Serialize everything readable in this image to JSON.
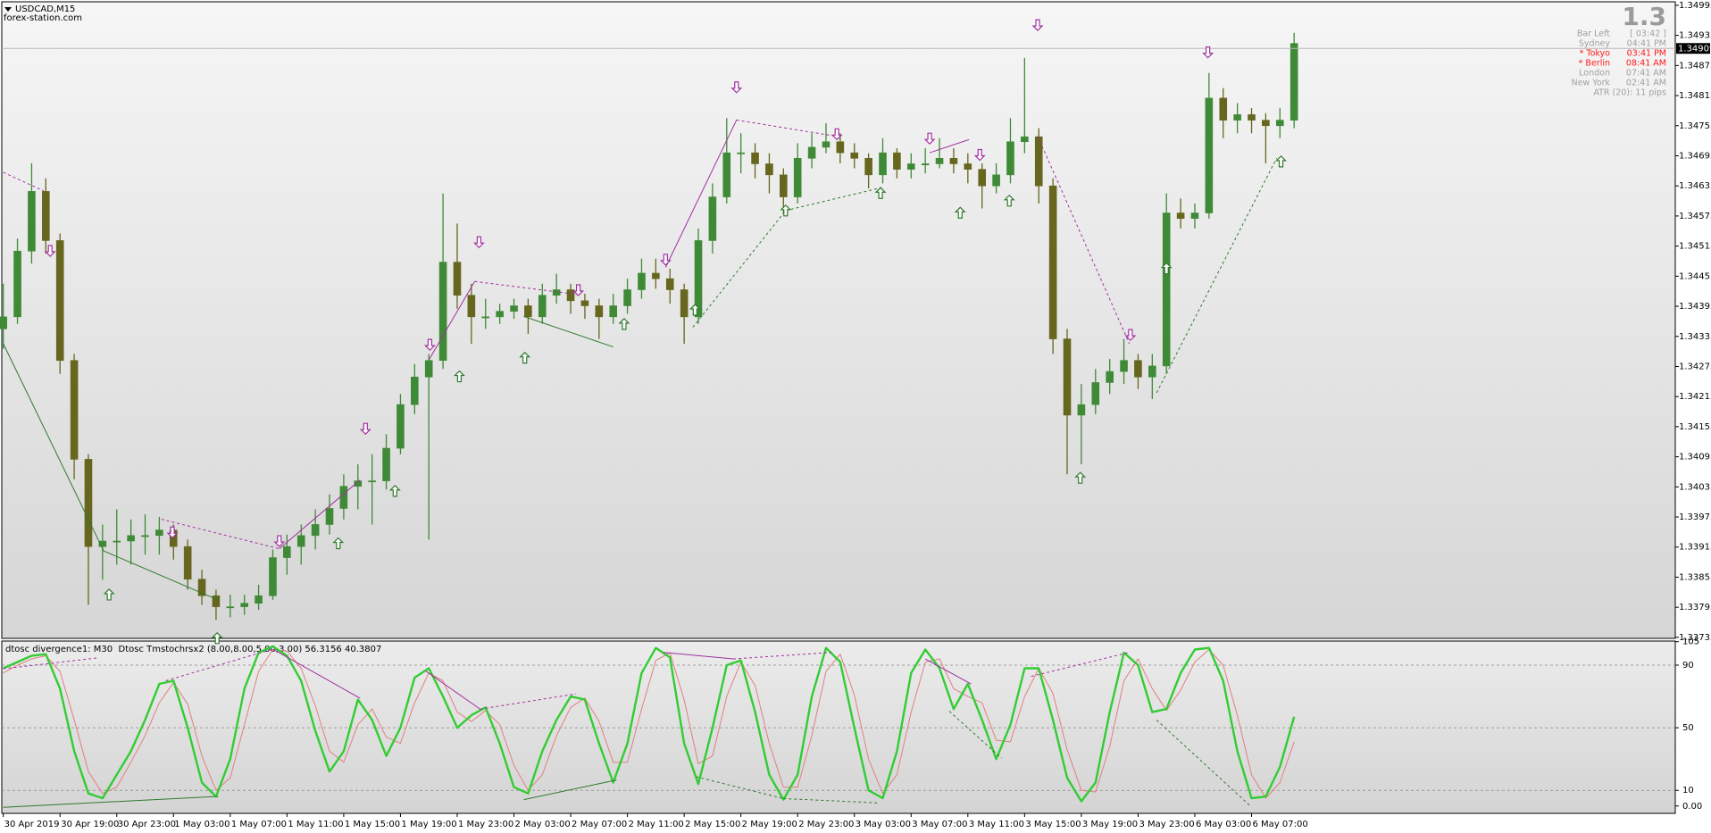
{
  "chart_data": [
    {
      "type": "candlestick",
      "title": "USDCAD,M15",
      "subtitle": "forex-station.com",
      "categories": [
        "30 Apr 2019",
        null,
        null,
        null,
        "30 Apr 19:00",
        null,
        null,
        null,
        "30 Apr 23:00",
        null,
        null,
        null,
        "1 May 03:00",
        null,
        null,
        null,
        "1 May 07:00",
        null,
        null,
        null,
        "1 May 11:00",
        null,
        null,
        null,
        "1 May 15:00",
        null,
        null,
        null,
        "1 May 19:00",
        null,
        null,
        null,
        "1 May 23:00",
        null,
        null,
        null,
        "2 May 03:00",
        null,
        null,
        null,
        "2 May 07:00",
        null,
        null,
        null,
        "2 May 11:00",
        null,
        null,
        null,
        "2 May 15:00",
        null,
        null,
        null,
        "2 May 19:00",
        null,
        null,
        null,
        "2 May 23:00",
        null,
        null,
        null,
        "3 May 03:00",
        null,
        null,
        null,
        "3 May 07:00",
        null,
        null,
        null,
        "3 May 11:00",
        null,
        null,
        null,
        "3 May 15:00",
        null,
        null,
        null,
        "3 May 19:00",
        null,
        null,
        null,
        "3 May 23:00",
        null,
        null,
        null,
        "6 May 03:00",
        null,
        null,
        null,
        "6 May 07:00",
        null,
        null,
        null
      ],
      "candles": [
        [
          1.3435,
          1.3444,
          1.3431,
          1.34374
        ],
        [
          1.34374,
          1.3453,
          1.3436,
          1.34505
        ],
        [
          1.34505,
          1.3468,
          1.3448,
          1.34624
        ],
        [
          1.34624,
          1.3465,
          1.345,
          1.34526
        ],
        [
          1.34526,
          1.3454,
          1.3426,
          1.34287
        ],
        [
          1.34287,
          1.343,
          1.3405,
          1.3409
        ],
        [
          1.3409,
          1.341,
          1.338,
          1.33916
        ],
        [
          1.33916,
          1.3396,
          1.3385,
          1.33927
        ],
        [
          1.33927,
          1.3399,
          1.3388,
          1.33927
        ],
        [
          1.33927,
          1.3397,
          1.3388,
          1.33938
        ],
        [
          1.33938,
          1.3398,
          1.339,
          1.33938
        ],
        [
          1.33938,
          1.33975,
          1.339,
          1.33949
        ],
        [
          1.33949,
          1.3396,
          1.3389,
          1.33916
        ],
        [
          1.33916,
          1.3393,
          1.3383,
          1.33851
        ],
        [
          1.33851,
          1.3387,
          1.338,
          1.33818
        ],
        [
          1.33818,
          1.3383,
          1.3377,
          1.33796
        ],
        [
          1.33796,
          1.3382,
          1.33775,
          1.33796
        ],
        [
          1.33796,
          1.3382,
          1.3378,
          1.33803
        ],
        [
          1.33803,
          1.3384,
          1.3379,
          1.33818
        ],
        [
          1.33818,
          1.3391,
          1.3381,
          1.33894
        ],
        [
          1.33894,
          1.3394,
          1.3386,
          1.33916
        ],
        [
          1.33916,
          1.3396,
          1.3388,
          1.33938
        ],
        [
          1.33938,
          1.3399,
          1.3391,
          1.3396
        ],
        [
          1.3396,
          1.3402,
          1.3394,
          1.33992
        ],
        [
          1.33992,
          1.3406,
          1.3397,
          1.34036
        ],
        [
          1.34036,
          1.3408,
          1.3399,
          1.34047
        ],
        [
          1.34047,
          1.341,
          1.3396,
          1.34047
        ],
        [
          1.34047,
          1.3414,
          1.3403,
          1.34112
        ],
        [
          1.34112,
          1.3422,
          1.341,
          1.34199
        ],
        [
          1.34199,
          1.3428,
          1.3418,
          1.34254
        ],
        [
          1.34254,
          1.343,
          1.3393,
          1.34287
        ],
        [
          1.34287,
          1.3462,
          1.3427,
          1.34483
        ],
        [
          1.34483,
          1.3456,
          1.3439,
          1.34417
        ],
        [
          1.34417,
          1.3444,
          1.3432,
          1.34374
        ],
        [
          1.34374,
          1.3441,
          1.3435,
          1.34374
        ],
        [
          1.34374,
          1.344,
          1.3436,
          1.34385
        ],
        [
          1.34385,
          1.3441,
          1.3437,
          1.34396
        ],
        [
          1.34396,
          1.3441,
          1.3434,
          1.34374
        ],
        [
          1.34374,
          1.3444,
          1.3436,
          1.34417
        ],
        [
          1.34417,
          1.3446,
          1.344,
          1.34428
        ],
        [
          1.34428,
          1.3444,
          1.3438,
          1.34406
        ],
        [
          1.34406,
          1.3442,
          1.3437,
          1.34396
        ],
        [
          1.34396,
          1.3441,
          1.3433,
          1.34374
        ],
        [
          1.34374,
          1.3442,
          1.3436,
          1.34396
        ],
        [
          1.34396,
          1.3445,
          1.3438,
          1.34428
        ],
        [
          1.34428,
          1.3449,
          1.3441,
          1.34461
        ],
        [
          1.34461,
          1.3449,
          1.3443,
          1.3445
        ],
        [
          1.3445,
          1.3447,
          1.344,
          1.34428
        ],
        [
          1.34428,
          1.3444,
          1.3432,
          1.34374
        ],
        [
          1.34374,
          1.3455,
          1.3436,
          1.34526
        ],
        [
          1.34526,
          1.3464,
          1.345,
          1.34613
        ],
        [
          1.34613,
          1.3477,
          1.346,
          1.34701
        ],
        [
          1.34701,
          1.3474,
          1.3466,
          1.34701
        ],
        [
          1.34701,
          1.3472,
          1.3465,
          1.34679
        ],
        [
          1.34679,
          1.347,
          1.3462,
          1.34657
        ],
        [
          1.34657,
          1.3467,
          1.3458,
          1.34613
        ],
        [
          1.34613,
          1.3472,
          1.346,
          1.3469
        ],
        [
          1.3469,
          1.3474,
          1.3467,
          1.34712
        ],
        [
          1.34712,
          1.3476,
          1.347,
          1.34723
        ],
        [
          1.34723,
          1.3474,
          1.3468,
          1.34701
        ],
        [
          1.34701,
          1.3472,
          1.3467,
          1.3469
        ],
        [
          1.3469,
          1.347,
          1.3463,
          1.34657
        ],
        [
          1.34657,
          1.3473,
          1.3464,
          1.34701
        ],
        [
          1.34701,
          1.3471,
          1.3465,
          1.34668
        ],
        [
          1.34668,
          1.347,
          1.3465,
          1.34679
        ],
        [
          1.34679,
          1.3471,
          1.3466,
          1.34679
        ],
        [
          1.34679,
          1.3473,
          1.3467,
          1.3469
        ],
        [
          1.3469,
          1.3471,
          1.3466,
          1.34679
        ],
        [
          1.34679,
          1.347,
          1.3464,
          1.34668
        ],
        [
          1.34668,
          1.3468,
          1.3459,
          1.34635
        ],
        [
          1.34635,
          1.3468,
          1.3462,
          1.34657
        ],
        [
          1.34657,
          1.3477,
          1.3464,
          1.34723
        ],
        [
          1.34723,
          1.3489,
          1.347,
          1.34733
        ],
        [
          1.34733,
          1.3475,
          1.346,
          1.34635
        ],
        [
          1.34635,
          1.3465,
          1.343,
          1.3433
        ],
        [
          1.3433,
          1.3435,
          1.3406,
          1.34178
        ],
        [
          1.34178,
          1.3424,
          1.3408,
          1.34199
        ],
        [
          1.34199,
          1.3427,
          1.3418,
          1.34243
        ],
        [
          1.34243,
          1.3429,
          1.3422,
          1.34265
        ],
        [
          1.34265,
          1.3433,
          1.3424,
          1.34287
        ],
        [
          1.34287,
          1.343,
          1.3423,
          1.34254
        ],
        [
          1.34254,
          1.343,
          1.3421,
          1.34276
        ],
        [
          1.34276,
          1.3462,
          1.3426,
          1.34581
        ],
        [
          1.34581,
          1.3461,
          1.3455,
          1.3457
        ],
        [
          1.3457,
          1.346,
          1.3455,
          1.34581
        ],
        [
          1.34581,
          1.3486,
          1.3457,
          1.3481
        ],
        [
          1.3481,
          1.3483,
          1.3473,
          1.34766
        ],
        [
          1.34766,
          1.348,
          1.3474,
          1.34777
        ],
        [
          1.34777,
          1.3479,
          1.3474,
          1.34766
        ],
        [
          1.34766,
          1.3478,
          1.3468,
          1.34755
        ],
        [
          1.34755,
          1.3479,
          1.3473,
          1.34766
        ],
        [
          1.34766,
          1.3494,
          1.3475,
          1.34919
        ]
      ],
      "up_color": "#3f8a36",
      "down_color": "#66661e",
      "ylim": [
        1.33733,
        1.35002
      ],
      "yticks": [
        1.34995,
        1.34935,
        1.34875,
        1.34815,
        1.34755,
        1.34695,
        1.34635,
        1.34575,
        1.34515,
        1.34455,
        1.34395,
        1.34335,
        1.34275,
        1.34215,
        1.34155,
        1.34095,
        1.34035,
        1.33975,
        1.33915,
        1.33855,
        1.33795,
        1.33735
      ],
      "current_price": 1.34909
    },
    {
      "type": "line",
      "title": "dtosc divergence1: M30  Dtosc Tmstochrsx2 (8.00,8.00,5.00,3.00) 56.3156 40.3807",
      "series": [
        {
          "color": "#33cc33",
          "values": [
            88,
            92,
            96,
            97,
            75,
            35,
            8,
            5,
            20,
            35,
            55,
            78,
            80,
            50,
            15,
            6,
            30,
            75,
            98,
            102,
            96,
            80,
            48,
            22,
            35,
            68,
            55,
            32,
            50,
            82,
            88,
            70,
            50,
            58,
            63,
            40,
            12,
            8,
            35,
            55,
            70,
            68,
            40,
            15,
            40,
            85,
            101,
            95,
            40,
            14,
            50,
            90,
            93,
            60,
            20,
            4,
            20,
            70,
            101,
            92,
            50,
            10,
            5,
            35,
            85,
            100,
            88,
            62,
            78,
            55,
            30,
            52,
            88,
            88,
            55,
            18,
            3,
            15,
            60,
            98,
            90,
            60,
            62,
            85,
            100,
            101,
            80,
            35,
            5,
            6,
            25,
            57
          ]
        },
        {
          "color": "#e08080",
          "values": [
            85,
            90,
            94,
            96,
            86,
            55,
            22,
            8,
            12,
            28,
            45,
            66,
            79,
            65,
            32,
            10,
            18,
            52,
            86,
            100,
            99,
            88,
            64,
            35,
            28,
            52,
            62,
            44,
            40,
            66,
            85,
            80,
            60,
            54,
            61,
            52,
            26,
            10,
            20,
            45,
            63,
            69,
            54,
            28,
            28,
            62,
            93,
            98,
            68,
            27,
            32,
            70,
            92,
            77,
            40,
            12,
            12,
            45,
            86,
            97,
            71,
            30,
            8,
            20,
            60,
            92,
            94,
            75,
            70,
            66,
            42,
            41,
            70,
            88,
            72,
            36,
            10,
            9,
            38,
            80,
            94,
            75,
            61,
            74,
            92,
            100,
            90,
            58,
            20,
            5,
            15,
            41
          ]
        }
      ],
      "ylim": [
        -4.7,
        105.4
      ],
      "yticks": [
        105,
        90,
        50,
        10,
        {
          "value": 0,
          "label": "0.00"
        }
      ],
      "levels": [
        90,
        50,
        10
      ]
    }
  ],
  "info_panel": {
    "big": "1.3",
    "rows": [
      {
        "label": "Bar Left",
        "time": "[ 03:42 ]",
        "color": "#a0a0a0"
      },
      {
        "label": "Sydney",
        "time": "04:41 PM",
        "color": "#a0a0a0"
      },
      {
        "label": "* Tokyo",
        "time": "03:41 PM",
        "color": "#ff1a1a"
      },
      {
        "label": "* Berlin",
        "time": "08:41 AM",
        "color": "#ff1a1a"
      },
      {
        "label": "London",
        "time": "07:41 AM",
        "color": "#a0a0a0"
      },
      {
        "label": "New York",
        "time": "02:41 AM",
        "color": "#a0a0a0"
      }
    ],
    "atr": "ATR (20): 11 pips"
  }
}
